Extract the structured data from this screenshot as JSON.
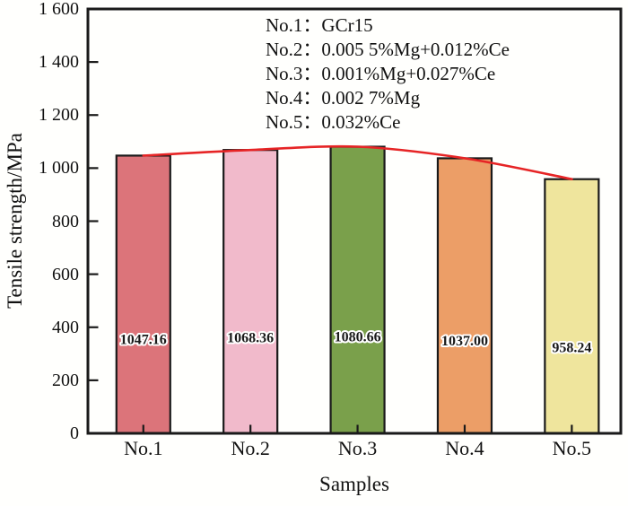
{
  "chart_data": {
    "type": "bar",
    "title": "",
    "categories": [
      "No.1",
      "No.2",
      "No.3",
      "No.4",
      "No.5"
    ],
    "values": [
      1047.16,
      1068.36,
      1080.66,
      1037.0,
      958.24
    ],
    "value_labels": [
      "1047.16",
      "1068.36",
      "1080.66",
      "1037.00",
      "958.24"
    ],
    "xlabel": "Samples",
    "ylabel": "Tensile strength/MPa",
    "ylim": [
      0,
      1600
    ],
    "ytick_step": 200,
    "ytick_labels": [
      "0",
      "200",
      "400",
      "600",
      "800",
      "1 000",
      "1 200",
      "1 400",
      "1 600"
    ],
    "grid": false,
    "bar_colors": [
      "#dc747a",
      "#f1bacb",
      "#7aa04b",
      "#ec9e67",
      "#efe59d"
    ],
    "bar_border_color": "#1a1a1a",
    "axis_color": "#1a1a1a",
    "trend_line": {
      "color": "#e62425",
      "connects": "bar-top-centers"
    },
    "value_label_style": {
      "fill": "#1a1a1a",
      "outline": "#ffffff"
    },
    "legend": {
      "position": "top-center-inside",
      "entries": [
        "No.1：GCr15",
        "No.2：0.005 5%Mg+0.012%Ce",
        "No.3：0.001%Mg+0.027%Ce",
        "No.4：0.002 7%Mg",
        "No.5：0.032%Ce"
      ]
    }
  }
}
